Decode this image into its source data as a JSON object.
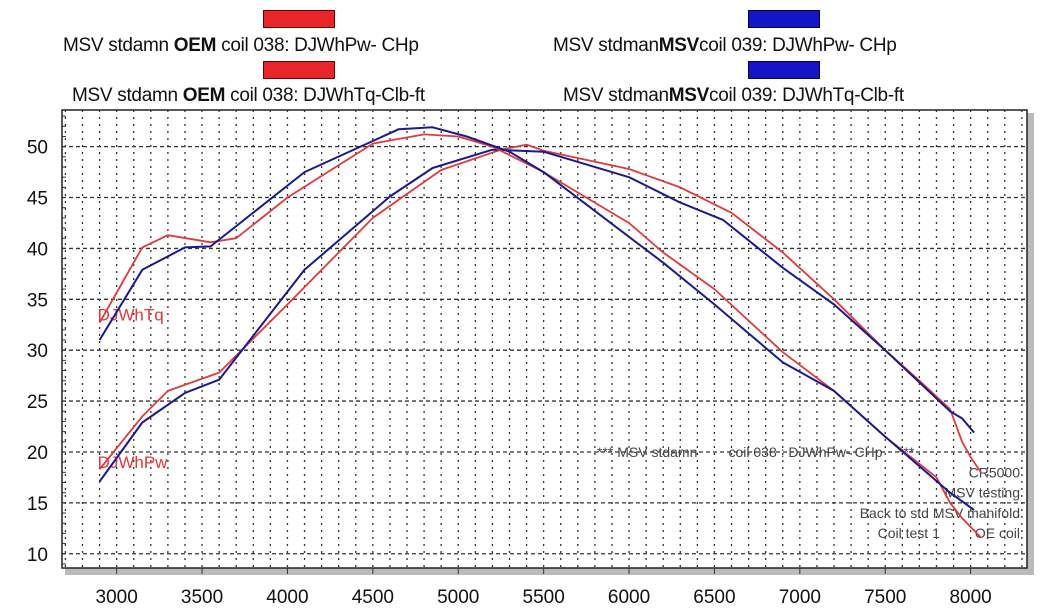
{
  "legend": [
    {
      "pre": "MSV stdamn ",
      "bold": "OEM",
      "post": " coil 038: DJWhPw- CHp",
      "color": "#e8262a"
    },
    {
      "pre": "MSV stdman",
      "bold": "MSV",
      "post": "coil 039: DJWhPw- CHp",
      "color": "#1515c8"
    },
    {
      "pre": "MSV stdamn ",
      "bold": "OEM",
      "post": " coil 038: DJWhTq-Clb-ft",
      "color": "#e8262a"
    },
    {
      "pre": "MSV stdman",
      "bold": "MSV",
      "post": "coil 039: DJWhTq-Clb-ft",
      "color": "#1515c8"
    }
  ],
  "chart_data": {
    "type": "line",
    "title": "",
    "xlabel": "",
    "ylabel": "",
    "xlim": [
      2680,
      8330
    ],
    "ylim": [
      8.6,
      53.6
    ],
    "x_ticks": [
      3000,
      3500,
      4000,
      4500,
      5000,
      5500,
      6000,
      6500,
      7000,
      7500,
      8000
    ],
    "y_ticks": [
      10,
      15,
      20,
      25,
      30,
      35,
      40,
      45,
      50
    ],
    "grid": true,
    "curve_labels": [
      {
        "text": "DJWhTq",
        "x": 2900,
        "y": 33.5
      },
      {
        "text": "DJWhPw",
        "x": 2900,
        "y": 19
      }
    ],
    "annotations": {
      "header": "*** MSV stdamn        coil 038 : DJWhPw- CHp    ***",
      "lines": [
        "CR5000",
        "MSV testing",
        "Back to std MSV manifold",
        "Coil test 1         OE coil"
      ]
    },
    "series": [
      {
        "name": "MSV stdamn OEM coil 038: DJWhPw- CHp",
        "color": "#e03a3a",
        "points": [
          [
            2900,
            18.3
          ],
          [
            3150,
            23.5
          ],
          [
            3300,
            26
          ],
          [
            3600,
            27.8
          ],
          [
            4000,
            34.5
          ],
          [
            4500,
            43
          ],
          [
            4900,
            47.7
          ],
          [
            5250,
            49.7
          ],
          [
            5400,
            50.2
          ],
          [
            5500,
            49.6
          ],
          [
            6000,
            47.8
          ],
          [
            6300,
            46
          ],
          [
            6600,
            43.5
          ],
          [
            6900,
            39.6
          ],
          [
            7200,
            35
          ],
          [
            7500,
            30
          ],
          [
            7700,
            27
          ],
          [
            7880,
            24.2
          ],
          [
            7950,
            21
          ],
          [
            8000,
            19.5
          ],
          [
            8060,
            18
          ]
        ]
      },
      {
        "name": "MSV stdman MSVcoil 039: DJWhPw- CHp",
        "color": "#1a1a90",
        "points": [
          [
            2900,
            17.1
          ],
          [
            3150,
            22.9
          ],
          [
            3400,
            25.8
          ],
          [
            3600,
            27.1
          ],
          [
            4100,
            37.9
          ],
          [
            4600,
            45.1
          ],
          [
            4850,
            47.9
          ],
          [
            5200,
            49.7
          ],
          [
            5500,
            49.5
          ],
          [
            6000,
            47
          ],
          [
            6300,
            44.5
          ],
          [
            6550,
            42.8
          ],
          [
            6900,
            38.1
          ],
          [
            7200,
            34.5
          ],
          [
            7500,
            30
          ],
          [
            7880,
            24
          ],
          [
            7950,
            23.3
          ],
          [
            8020,
            21.9
          ]
        ]
      },
      {
        "name": "MSV stdamn OEM coil 038: DJWhTq-Clb-ft",
        "color": "#e03a3a",
        "points": [
          [
            2900,
            32.7
          ],
          [
            3150,
            40.1
          ],
          [
            3300,
            41.3
          ],
          [
            3550,
            40.6
          ],
          [
            3700,
            41
          ],
          [
            4000,
            45
          ],
          [
            4500,
            50.3
          ],
          [
            4800,
            51.2
          ],
          [
            5000,
            51
          ],
          [
            5200,
            50
          ],
          [
            5500,
            47.5
          ],
          [
            6000,
            42.5
          ],
          [
            6200,
            39.6
          ],
          [
            6500,
            36
          ],
          [
            6900,
            29.8
          ],
          [
            7200,
            26
          ],
          [
            7500,
            21.5
          ],
          [
            7800,
            17.5
          ],
          [
            7880,
            15
          ],
          [
            7950,
            13.5
          ],
          [
            8060,
            11.6
          ]
        ]
      },
      {
        "name": "MSV stdman MSVcoil 039: DJWhTq-Clb-ft",
        "color": "#1a1a90",
        "points": [
          [
            2900,
            31
          ],
          [
            3150,
            37.9
          ],
          [
            3400,
            40.1
          ],
          [
            3550,
            40.2
          ],
          [
            4100,
            47.5
          ],
          [
            4650,
            51.7
          ],
          [
            4850,
            51.9
          ],
          [
            5050,
            51
          ],
          [
            5300,
            49.5
          ],
          [
            5500,
            47.5
          ],
          [
            6200,
            38.6
          ],
          [
            6500,
            34.5
          ],
          [
            6900,
            28.8
          ],
          [
            7200,
            26
          ],
          [
            7500,
            21.5
          ],
          [
            7880,
            16
          ],
          [
            8020,
            14.3
          ]
        ]
      }
    ]
  }
}
